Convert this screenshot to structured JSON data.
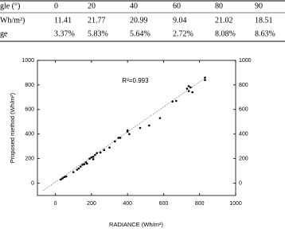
{
  "table": {
    "rows": [
      [
        "gle (°)",
        "0",
        "20",
        "40",
        "60",
        "80",
        "90"
      ],
      [
        "Wh/m²)",
        "11.41",
        "21.77",
        "20.99",
        "9.04",
        "21.02",
        "18.51"
      ],
      [
        "ge",
        "3.37%",
        "5.83%",
        "5.64%",
        "2.72%",
        "8.08%",
        "8.63%"
      ]
    ]
  },
  "chart_data": {
    "type": "scatter",
    "x_label": "RADIANCE (Wh/m²)",
    "y_label": "Proposed method (Wh/m²)",
    "annotation": "R²=0.993",
    "color": "#000000",
    "x": [
      30,
      40,
      50,
      60,
      100,
      120,
      130,
      140,
      150,
      160,
      170,
      175,
      190,
      200,
      210,
      210,
      220,
      230,
      250,
      270,
      300,
      330,
      350,
      360,
      400,
      400,
      410,
      470,
      520,
      580,
      650,
      670,
      730,
      740,
      740,
      750,
      760,
      830,
      830
    ],
    "values": [
      30,
      40,
      50,
      55,
      90,
      110,
      120,
      135,
      150,
      155,
      170,
      160,
      200,
      210,
      215,
      195,
      230,
      245,
      250,
      270,
      290,
      340,
      370,
      370,
      420,
      430,
      400,
      450,
      470,
      530,
      665,
      670,
      770,
      790,
      750,
      780,
      740,
      840,
      860
    ],
    "xlim": [
      -100,
      1000
    ],
    "ylim": [
      -100,
      1000
    ],
    "xticks": [
      0,
      200,
      400,
      600,
      800,
      1000
    ],
    "yticks": [
      0,
      200,
      400,
      600,
      800,
      1000
    ]
  }
}
